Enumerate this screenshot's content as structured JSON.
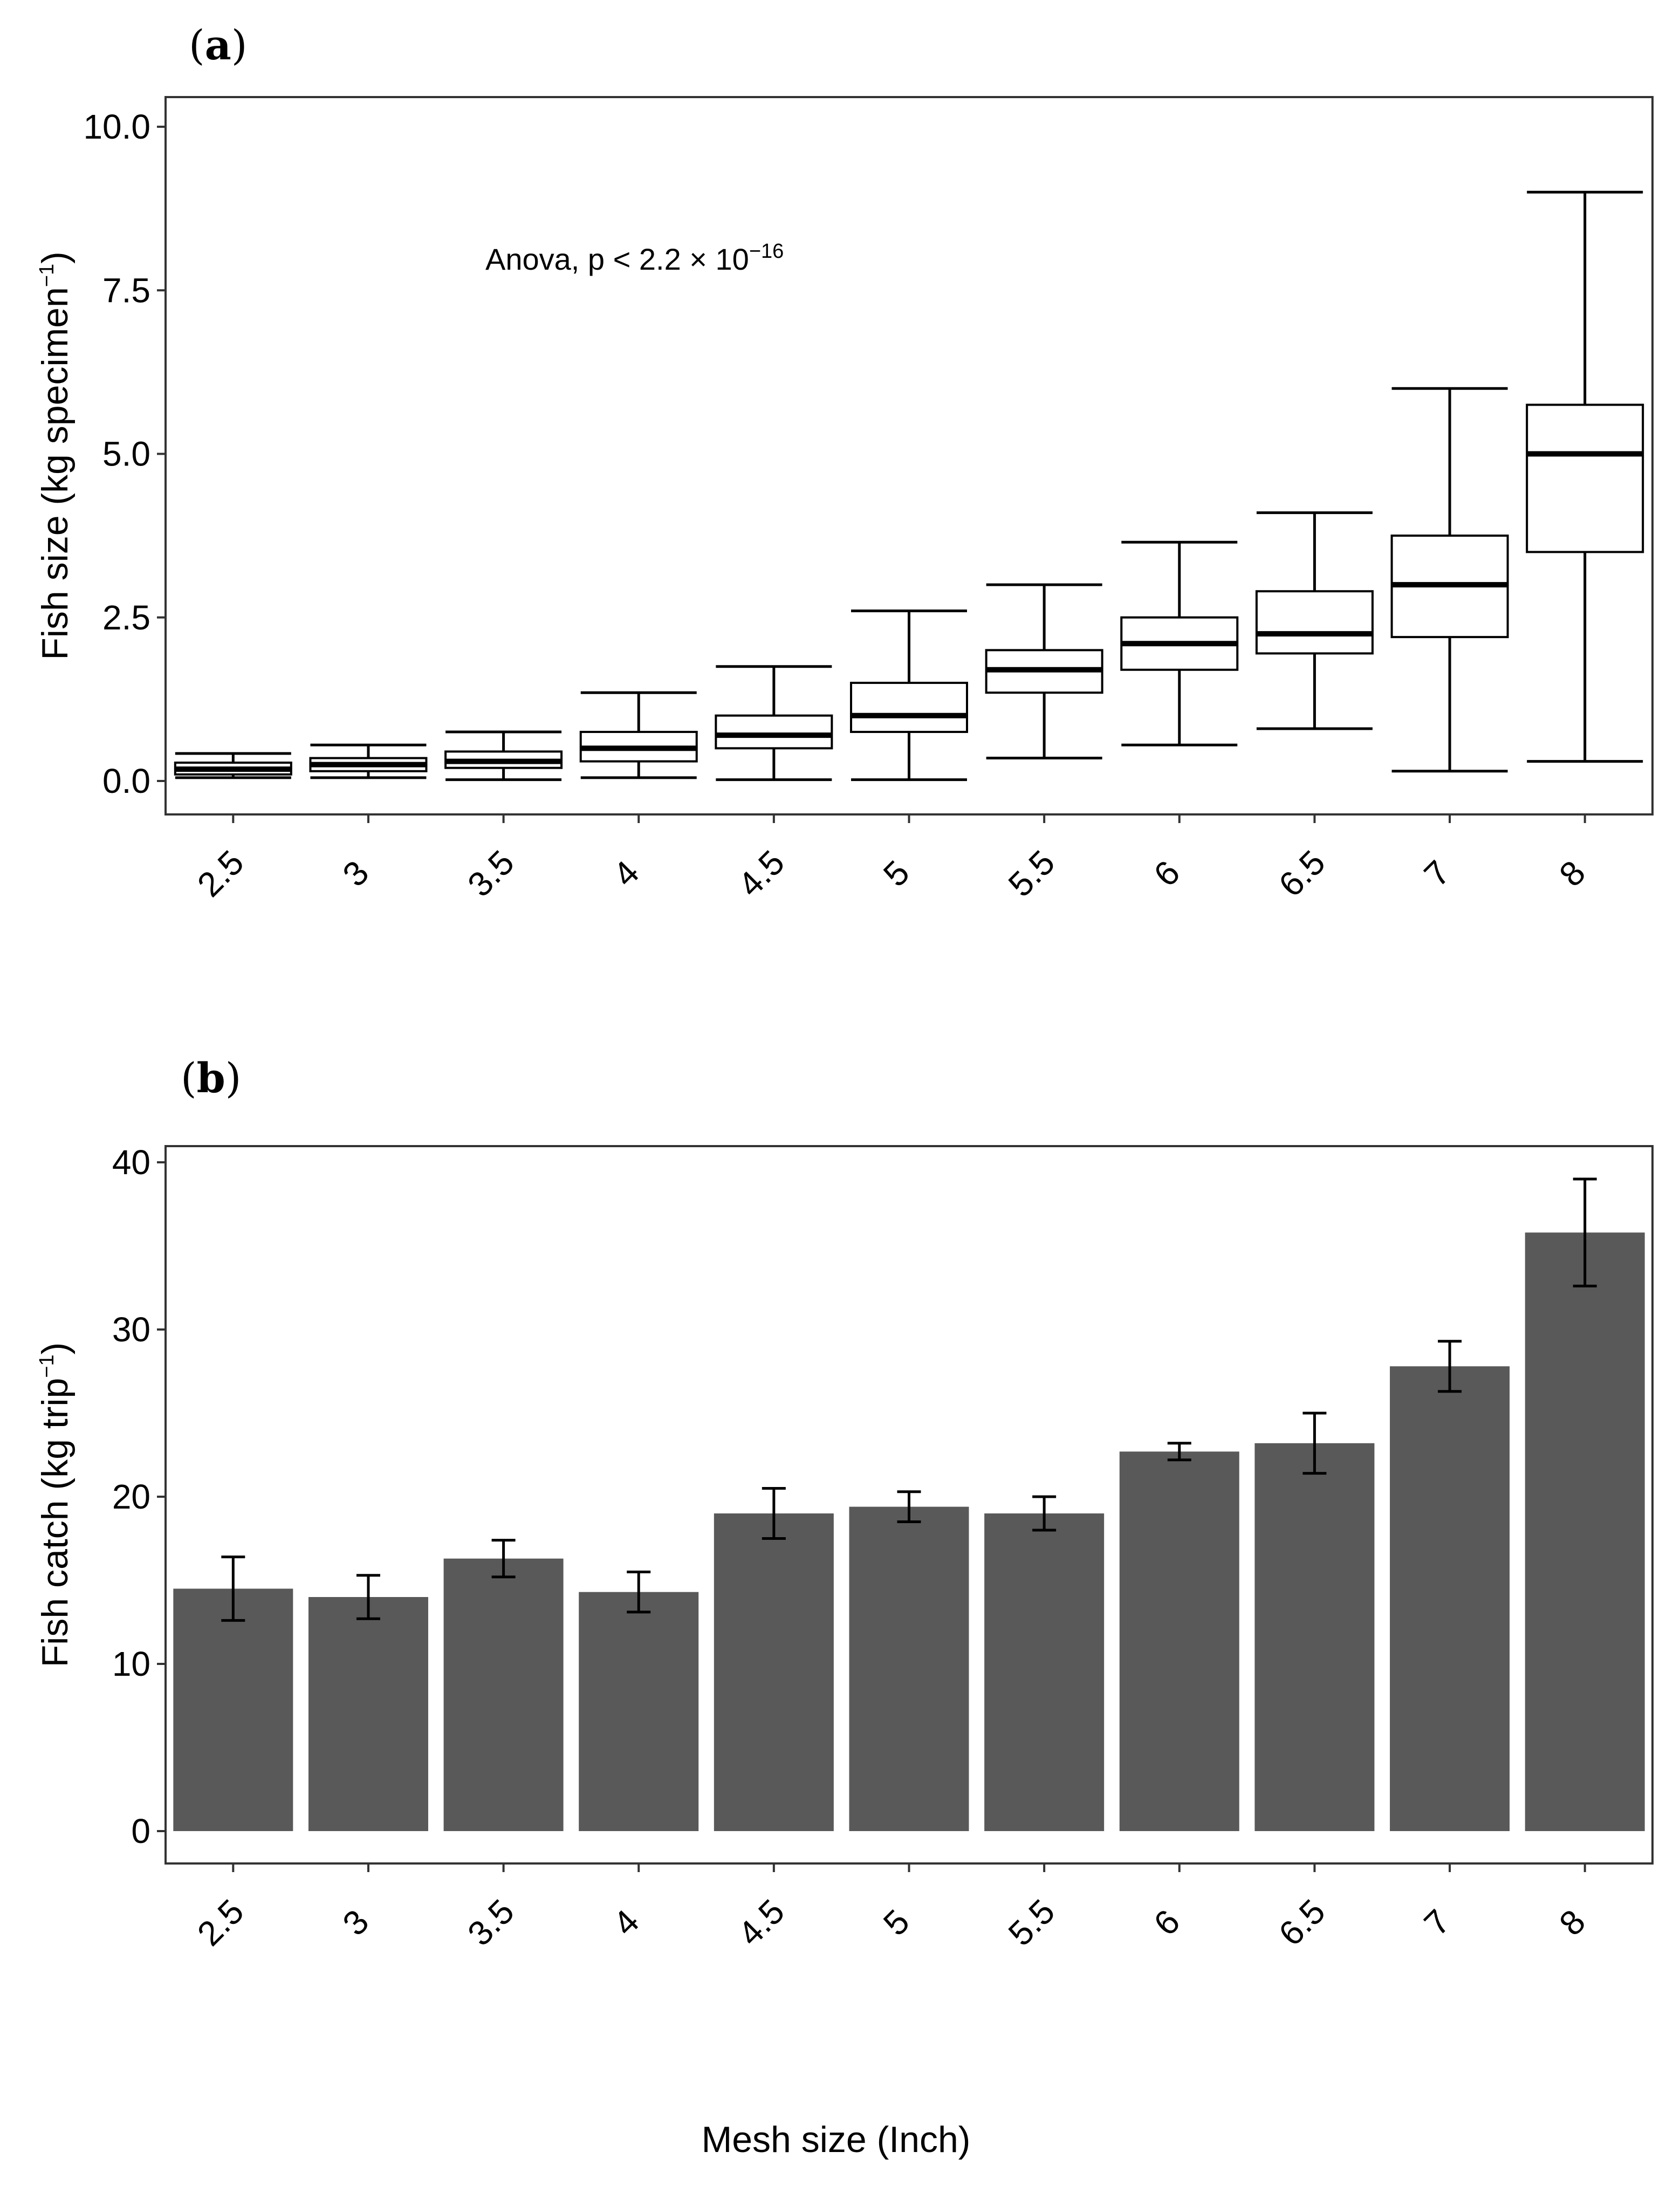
{
  "chart_data": [
    {
      "type": "box",
      "panel_label": "a",
      "ylabel": "Fish size (kg specimen",
      "ylabel_sup": "−1",
      "ylabel_close": ")",
      "annotation": "Anova, p < 2.2 × 10",
      "annotation_sup": "−16",
      "categories": [
        "2.5",
        "3",
        "3.5",
        "4",
        "4.5",
        "5",
        "5.5",
        "6",
        "6.5",
        "7",
        "8"
      ],
      "yticks": [
        "0.0",
        "2.5",
        "5.0",
        "7.5",
        "10.0"
      ],
      "ylim": [
        -0.5,
        10.5
      ],
      "boxes": [
        {
          "min": 0.05,
          "q1": 0.1,
          "median": 0.18,
          "q3": 0.28,
          "max": 0.42
        },
        {
          "min": 0.05,
          "q1": 0.15,
          "median": 0.25,
          "q3": 0.35,
          "max": 0.55
        },
        {
          "min": 0.02,
          "q1": 0.2,
          "median": 0.3,
          "q3": 0.45,
          "max": 0.75
        },
        {
          "min": 0.05,
          "q1": 0.3,
          "median": 0.5,
          "q3": 0.75,
          "max": 1.35
        },
        {
          "min": 0.02,
          "q1": 0.5,
          "median": 0.7,
          "q3": 1.0,
          "max": 1.75
        },
        {
          "min": 0.02,
          "q1": 0.75,
          "median": 1.0,
          "q3": 1.5,
          "max": 2.6
        },
        {
          "min": 0.35,
          "q1": 1.35,
          "median": 1.7,
          "q3": 2.0,
          "max": 3.0
        },
        {
          "min": 0.55,
          "q1": 1.7,
          "median": 2.1,
          "q3": 2.5,
          "max": 3.65
        },
        {
          "min": 0.8,
          "q1": 1.95,
          "median": 2.25,
          "q3": 2.9,
          "max": 4.1
        },
        {
          "min": 0.15,
          "q1": 2.2,
          "median": 3.0,
          "q3": 3.75,
          "max": 6.0
        },
        {
          "min": 0.3,
          "q1": 3.5,
          "median": 5.0,
          "q3": 5.75,
          "max": 9.0
        }
      ]
    },
    {
      "type": "bar",
      "panel_label": "b",
      "ylabel": "Fish catch (kg trip",
      "ylabel_sup": "−1",
      "ylabel_close": ")",
      "xlabel": "Mesh size (Inch)",
      "categories": [
        "2.5",
        "3",
        "3.5",
        "4",
        "4.5",
        "5",
        "5.5",
        "6",
        "6.5",
        "7",
        "8"
      ],
      "yticks": [
        "0",
        "10",
        "20",
        "30",
        "40"
      ],
      "ylim": [
        -1.5,
        41
      ],
      "values": [
        14.5,
        14.0,
        16.3,
        14.3,
        19.0,
        19.4,
        19.0,
        22.7,
        23.2,
        27.8,
        35.8
      ],
      "errors": [
        1.9,
        1.3,
        1.1,
        1.2,
        1.5,
        0.9,
        1.0,
        0.5,
        1.8,
        1.5,
        3.2
      ],
      "bar_color": "#595959"
    }
  ]
}
